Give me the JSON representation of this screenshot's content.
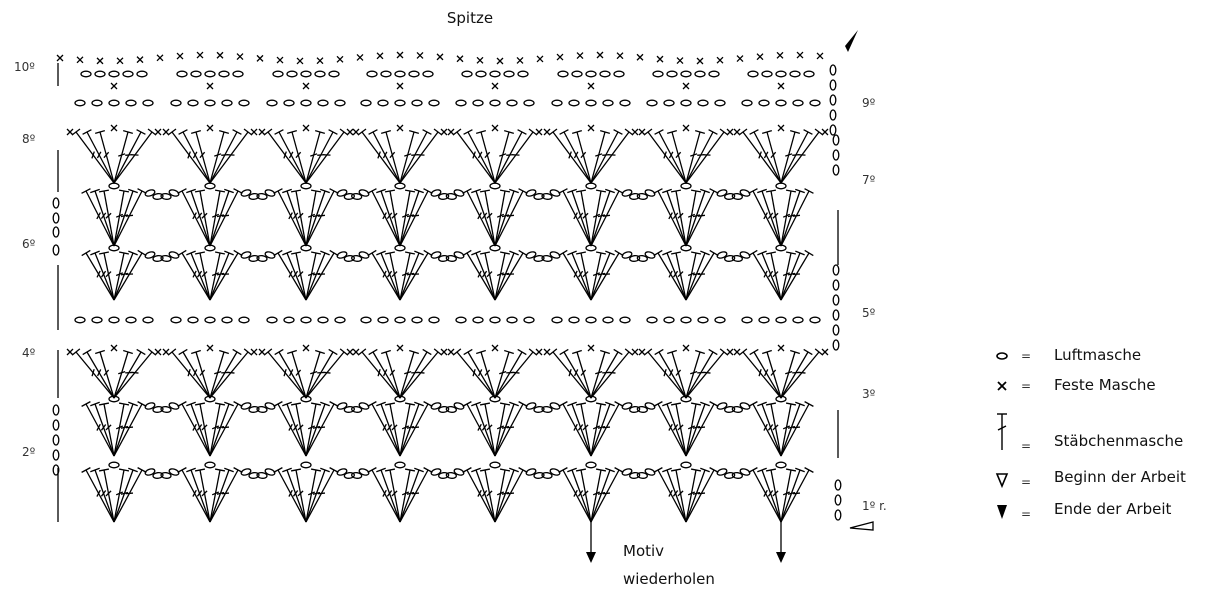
{
  "title": "Spitze",
  "repeat_label": [
    "Motiv",
    "wiederholen"
  ],
  "rows_left": [
    "10º",
    "8º",
    "6º",
    "4º",
    "2º"
  ],
  "rows_right": [
    "9º",
    "7º",
    "5º",
    "3º",
    "1º r."
  ],
  "legend": [
    {
      "symbol": "chain",
      "eq": "=",
      "label": "Luftmasche"
    },
    {
      "symbol": "sc",
      "eq": "=",
      "label": "Feste Masche"
    },
    {
      "symbol": "dc",
      "eq": "=",
      "label": "Stäbchenmasche"
    },
    {
      "symbol": "start",
      "eq": "=",
      "label": "Beginn der Arbeit"
    },
    {
      "symbol": "end",
      "eq": "=",
      "label": "Ende der Arbeit"
    }
  ]
}
